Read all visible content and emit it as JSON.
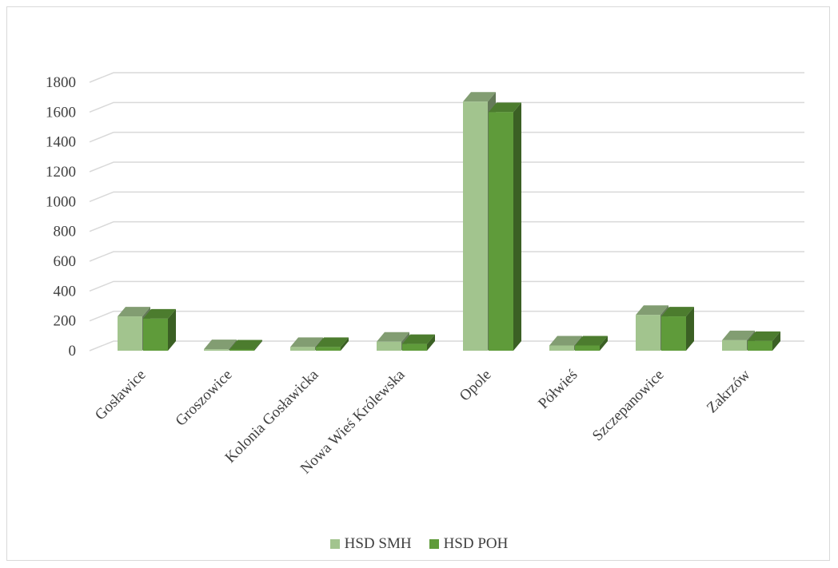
{
  "chart_data": {
    "type": "bar",
    "style": "3d-clustered-column",
    "categories": [
      "Gosławice",
      "Groszowice",
      "Kolonia Gosławicka",
      "Nowa Wieś Królewska",
      "Opole",
      "Półwieś",
      "Szczepanowice",
      "Zakrzów"
    ],
    "series": [
      {
        "name": "HSD SMH",
        "color": "#a2c48e",
        "values": [
          230,
          10,
          25,
          60,
          1670,
          35,
          240,
          70
        ]
      },
      {
        "name": "HSD POH",
        "color": "#5f9b3a",
        "values": [
          215,
          8,
          25,
          45,
          1600,
          35,
          230,
          65
        ]
      }
    ],
    "yticks": [
      0,
      200,
      400,
      600,
      800,
      1000,
      1200,
      1400,
      1600,
      1800
    ],
    "ylim": [
      0,
      1800
    ],
    "grid": true,
    "legend": "bottom"
  }
}
